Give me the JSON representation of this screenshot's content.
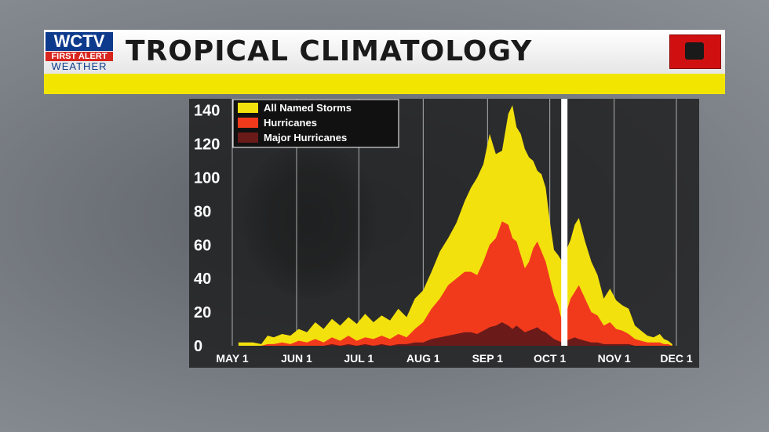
{
  "header": {
    "title": "TROPICAL CLIMATOLOGY",
    "logo": {
      "brand": "WCTV",
      "line2": "FIRST ALERT",
      "line3": "WEATHER"
    }
  },
  "colors": {
    "named_storms": "#f3e10d",
    "hurricanes": "#f13a1c",
    "major_hurricanes": "#6b1a1a",
    "plot_bg": "#1c1c1c",
    "accent_yellow": "#f2e600"
  },
  "chart_data": {
    "type": "area",
    "title": "",
    "xlabel": "",
    "ylabel": "",
    "xlim": [
      0,
      214
    ],
    "ylim": [
      0,
      145
    ],
    "yticks": [
      "0",
      "20",
      "40",
      "60",
      "80",
      "100",
      "120",
      "140"
    ],
    "ytick_values": [
      0,
      20,
      40,
      60,
      80,
      100,
      120,
      140
    ],
    "xticks": [
      {
        "label": "MAY 1",
        "day": 0
      },
      {
        "label": "JUN 1",
        "day": 31
      },
      {
        "label": "JUL 1",
        "day": 61
      },
      {
        "label": "AUG 1",
        "day": 92
      },
      {
        "label": "SEP 1",
        "day": 123
      },
      {
        "label": "OCT 1",
        "day": 153
      },
      {
        "label": "NOV 1",
        "day": 184
      },
      {
        "label": "DEC 1",
        "day": 214
      }
    ],
    "current_marker_day": 160,
    "legend": {
      "placement": "top-left"
    },
    "grid": "vertical",
    "series": [
      {
        "name": "All Named Storms",
        "x": [
          3,
          10,
          14,
          17,
          20,
          24,
          28,
          32,
          36,
          40,
          44,
          48,
          52,
          56,
          60,
          64,
          68,
          72,
          76,
          80,
          84,
          88,
          92,
          96,
          100,
          104,
          108,
          112,
          115,
          118,
          121,
          124,
          127,
          130,
          133,
          135,
          137,
          139,
          141,
          143,
          145,
          147,
          149,
          151,
          153,
          155,
          157,
          159,
          161,
          163,
          165,
          167,
          170,
          173,
          176,
          179,
          182,
          185,
          188,
          191,
          194,
          197,
          200,
          203,
          206,
          208,
          210,
          212
        ],
        "y": [
          2,
          2,
          1,
          6,
          5,
          7,
          6,
          10,
          8,
          14,
          10,
          16,
          12,
          17,
          13,
          19,
          14,
          18,
          15,
          22,
          17,
          28,
          33,
          44,
          56,
          64,
          73,
          86,
          94,
          100,
          108,
          126,
          114,
          116,
          138,
          143,
          130,
          126,
          117,
          112,
          110,
          104,
          102,
          94,
          74,
          57,
          54,
          50,
          57,
          63,
          72,
          76,
          62,
          50,
          42,
          28,
          34,
          27,
          24,
          22,
          12,
          9,
          6,
          5,
          7,
          4,
          3,
          1
        ]
      },
      {
        "name": "Hurricanes",
        "x": [
          3,
          10,
          14,
          17,
          20,
          24,
          28,
          32,
          36,
          40,
          44,
          48,
          52,
          56,
          60,
          64,
          68,
          72,
          76,
          80,
          84,
          88,
          92,
          96,
          100,
          104,
          108,
          112,
          115,
          118,
          121,
          124,
          127,
          130,
          133,
          135,
          137,
          139,
          141,
          143,
          145,
          147,
          149,
          151,
          153,
          155,
          157,
          159,
          161,
          163,
          165,
          167,
          170,
          173,
          176,
          179,
          182,
          185,
          188,
          191,
          194,
          197,
          200,
          203,
          206,
          208,
          210,
          212
        ],
        "y": [
          0,
          0,
          0,
          1,
          1,
          2,
          1,
          3,
          2,
          4,
          2,
          5,
          3,
          6,
          3,
          5,
          4,
          6,
          4,
          7,
          5,
          10,
          14,
          22,
          28,
          36,
          40,
          44,
          44,
          42,
          50,
          60,
          64,
          74,
          72,
          64,
          62,
          54,
          46,
          50,
          58,
          62,
          56,
          50,
          40,
          30,
          24,
          14,
          20,
          28,
          32,
          36,
          28,
          20,
          18,
          12,
          14,
          10,
          9,
          7,
          4,
          3,
          2,
          2,
          2,
          1,
          1,
          0
        ]
      },
      {
        "name": "Major Hurricanes",
        "x": [
          3,
          10,
          14,
          17,
          20,
          24,
          28,
          32,
          36,
          40,
          44,
          48,
          52,
          56,
          60,
          64,
          68,
          72,
          76,
          80,
          84,
          88,
          92,
          96,
          100,
          104,
          108,
          112,
          115,
          118,
          121,
          124,
          127,
          130,
          133,
          135,
          137,
          139,
          141,
          143,
          145,
          147,
          149,
          151,
          153,
          155,
          157,
          159,
          161,
          163,
          165,
          167,
          170,
          173,
          176,
          179,
          182,
          185,
          188,
          191,
          194,
          197,
          200,
          203,
          206,
          208,
          210,
          212
        ],
        "y": [
          0,
          0,
          0,
          0,
          0,
          0,
          0,
          0,
          0,
          0,
          0,
          1,
          0,
          1,
          0,
          1,
          0,
          1,
          0,
          1,
          1,
          2,
          2,
          4,
          5,
          6,
          7,
          8,
          8,
          7,
          9,
          11,
          12,
          14,
          12,
          10,
          12,
          10,
          8,
          9,
          10,
          11,
          9,
          8,
          6,
          4,
          3,
          2,
          3,
          4,
          5,
          4,
          3,
          2,
          2,
          1,
          1,
          1,
          1,
          1,
          0,
          0,
          0,
          0,
          0,
          0,
          0,
          0
        ]
      }
    ]
  }
}
